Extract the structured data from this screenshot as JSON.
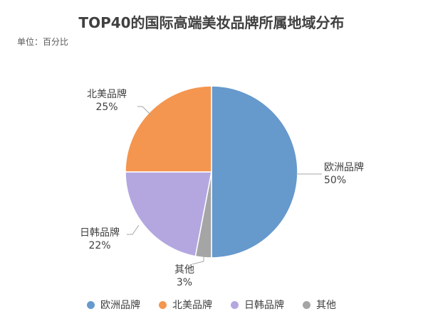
{
  "chart_data": {
    "type": "pie",
    "title": "TOP40的国际高端美妆品牌所属地域分布",
    "subtitle": "单位：百分比",
    "slices": [
      {
        "name": "欧洲品牌",
        "value": 50,
        "label": "50%",
        "color": "#6699CC"
      },
      {
        "name": "其他",
        "value": 3,
        "label": "3%",
        "color": "#A5A5A5"
      },
      {
        "name": "日韩品牌",
        "value": 22,
        "label": "22%",
        "color": "#B4A7E0"
      },
      {
        "name": "北美品牌",
        "value": 25,
        "label": "25%",
        "color": "#F4964F"
      }
    ],
    "legend": {
      "position": "bottom",
      "items": [
        {
          "name": "欧洲品牌",
          "color": "#6699CC"
        },
        {
          "name": "北美品牌",
          "color": "#F4964F"
        },
        {
          "name": "日韩品牌",
          "color": "#B4A7E0"
        },
        {
          "name": "其他",
          "color": "#A5A5A5"
        }
      ]
    }
  }
}
